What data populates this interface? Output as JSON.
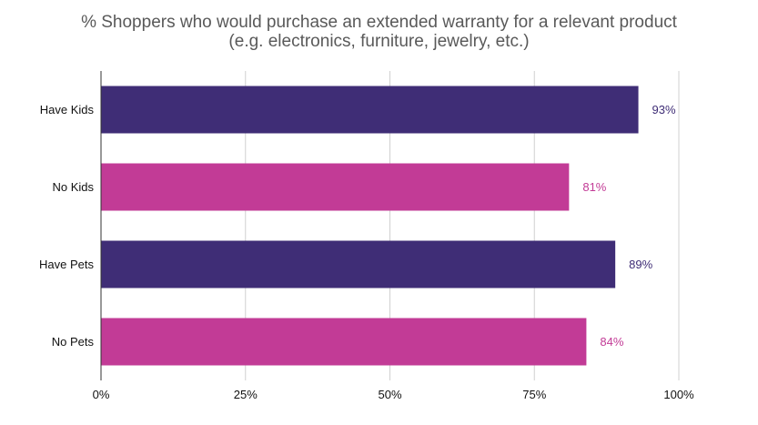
{
  "chart_data": {
    "type": "bar",
    "orientation": "horizontal",
    "title": "% Shoppers who would purchase an extended warranty for a relevant product",
    "subtitle": "(e.g. electronics, furniture, jewelry, etc.)",
    "categories": [
      "Have Kids",
      "No Kids",
      "Have Pets",
      "No Pets"
    ],
    "values": [
      93,
      81,
      89,
      84
    ],
    "data_labels": [
      "93%",
      "81%",
      "89%",
      "84%"
    ],
    "bar_colors": [
      "#3f2d76",
      "#c23b96",
      "#3f2d76",
      "#c23b96"
    ],
    "xlim": [
      0,
      100
    ],
    "x_ticks": [
      0,
      25,
      50,
      75,
      100
    ],
    "x_tick_labels": [
      "0%",
      "25%",
      "50%",
      "75%",
      "100%"
    ],
    "xlabel": "",
    "ylabel": "",
    "grid": "vertical",
    "legend": "none"
  }
}
